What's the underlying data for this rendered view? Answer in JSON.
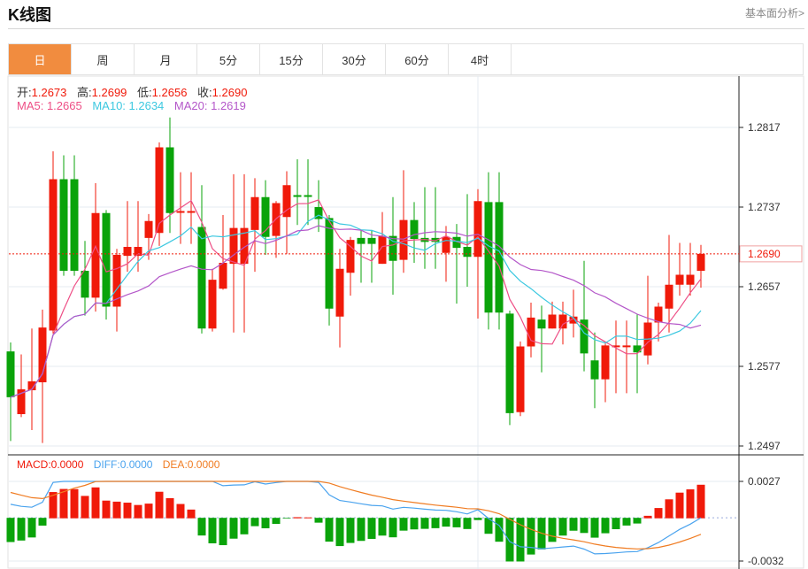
{
  "header": {
    "title": "K线图",
    "link": "基本面分析>"
  },
  "tabs": [
    {
      "label": "日",
      "active": true
    },
    {
      "label": "周"
    },
    {
      "label": "月"
    },
    {
      "label": "5分"
    },
    {
      "label": "15分"
    },
    {
      "label": "30分"
    },
    {
      "label": "60分"
    },
    {
      "label": "4时"
    }
  ],
  "legend": {
    "open_label": "开:",
    "open": "1.2673",
    "high_label": "高:",
    "high": "1.2699",
    "low_label": "低:",
    "low": "1.2656",
    "close_label": "收:",
    "close": "1.2690",
    "ma5": "MA5: 1.2665",
    "ma10": "MA10: 1.2634",
    "ma20": "MA20: 1.2619"
  },
  "macd_legend": {
    "macd": "MACD:0.0000",
    "diff": "DIFF:0.0000",
    "dea": "DEA:0.0000"
  },
  "colors": {
    "up": "#f01a0a",
    "down": "#0aa30a",
    "ma5": "#ee4f86",
    "ma10": "#3cc8e0",
    "ma20": "#b457c9",
    "diff": "#4aa3ee",
    "dea": "#f07c22",
    "accent": "#f18c3f"
  },
  "chart_data": {
    "type": "candlestick",
    "price_axis": {
      "ticks": [
        "1.2817",
        "1.2737",
        "1.2657",
        "1.2577",
        "1.2497"
      ],
      "range": [
        1.2497,
        1.2817
      ]
    },
    "macd_axis": {
      "ticks": [
        "0.0027",
        "-0.0032"
      ],
      "range": [
        -0.0032,
        0.0027
      ]
    },
    "current_price": "1.2690",
    "ohlc": [
      [
        1.2592,
        1.2601,
        1.2502,
        1.2546
      ],
      [
        1.2529,
        1.2589,
        1.2526,
        1.2554
      ],
      [
        1.2553,
        1.2615,
        1.2513,
        1.2562
      ],
      [
        1.2561,
        1.2634,
        1.25,
        1.2616
      ],
      [
        1.2613,
        1.2793,
        1.261,
        1.2765
      ],
      [
        1.2765,
        1.2789,
        1.2668,
        1.2673
      ],
      [
        1.2765,
        1.2789,
        1.2668,
        1.2673
      ],
      [
        1.2673,
        1.2703,
        1.2628,
        1.2646
      ],
      [
        1.2646,
        1.2761,
        1.2632,
        1.2731
      ],
      [
        1.2731,
        1.2734,
        1.2624,
        1.2637
      ],
      [
        1.2637,
        1.2695,
        1.2612,
        1.2689
      ],
      [
        1.2688,
        1.2743,
        1.2672,
        1.2697
      ],
      [
        1.2688,
        1.2743,
        1.2672,
        1.2697
      ],
      [
        1.2706,
        1.273,
        1.2684,
        1.2723
      ],
      [
        1.2711,
        1.2802,
        1.2698,
        1.2797
      ],
      [
        1.2797,
        1.2827,
        1.2711,
        1.2731
      ],
      [
        1.2732,
        1.2772,
        1.27,
        1.2733
      ],
      [
        1.2732,
        1.2772,
        1.27,
        1.2733
      ],
      [
        1.2717,
        1.2759,
        1.261,
        1.2615
      ],
      [
        1.2615,
        1.2675,
        1.2612,
        1.2664
      ],
      [
        1.2655,
        1.2729,
        1.2654,
        1.2681
      ],
      [
        1.268,
        1.277,
        1.2611,
        1.2716
      ],
      [
        1.268,
        1.277,
        1.2611,
        1.2716
      ],
      [
        1.2714,
        1.2766,
        1.2672,
        1.2747
      ],
      [
        1.2747,
        1.2764,
        1.2689,
        1.2707
      ],
      [
        1.2708,
        1.2743,
        1.2686,
        1.2741
      ],
      [
        1.2727,
        1.2773,
        1.269,
        1.2759
      ],
      [
        1.2749,
        1.2785,
        1.2719,
        1.2748
      ],
      [
        1.2749,
        1.2785,
        1.2719,
        1.2748
      ],
      [
        1.2737,
        1.2764,
        1.2712,
        1.2725
      ],
      [
        1.2726,
        1.2729,
        1.2618,
        1.2635
      ],
      [
        1.2627,
        1.2695,
        1.2596,
        1.2675
      ],
      [
        1.2671,
        1.2707,
        1.2648,
        1.2704
      ],
      [
        1.2706,
        1.2714,
        1.2661,
        1.27
      ],
      [
        1.2706,
        1.2714,
        1.2661,
        1.27
      ],
      [
        1.268,
        1.2732,
        1.268,
        1.2708
      ],
      [
        1.2708,
        1.2747,
        1.2649,
        1.2683
      ],
      [
        1.2684,
        1.2774,
        1.2671,
        1.2724
      ],
      [
        1.2724,
        1.2742,
        1.2681,
        1.2705
      ],
      [
        1.2706,
        1.2757,
        1.2675,
        1.2702
      ],
      [
        1.2706,
        1.2757,
        1.2675,
        1.2702
      ],
      [
        1.2691,
        1.2718,
        1.2662,
        1.2707
      ],
      [
        1.2707,
        1.272,
        1.264,
        1.2696
      ],
      [
        1.2697,
        1.275,
        1.2657,
        1.2687
      ],
      [
        1.2687,
        1.2755,
        1.2625,
        1.2743
      ],
      [
        1.2742,
        1.2772,
        1.2614,
        1.2631
      ],
      [
        1.2742,
        1.2772,
        1.2614,
        1.2631
      ],
      [
        1.263,
        1.2633,
        1.2518,
        1.253
      ],
      [
        1.2531,
        1.2602,
        1.2527,
        1.2597
      ],
      [
        1.2597,
        1.2641,
        1.2586,
        1.2626
      ],
      [
        1.2624,
        1.2638,
        1.2571,
        1.2615
      ],
      [
        1.2615,
        1.2642,
        1.2615,
        1.2629
      ],
      [
        1.2615,
        1.2642,
        1.2599,
        1.2629
      ],
      [
        1.262,
        1.2654,
        1.2606,
        1.2627
      ],
      [
        1.2624,
        1.2683,
        1.2572,
        1.259
      ],
      [
        1.2583,
        1.2611,
        1.2535,
        1.2564
      ],
      [
        1.2564,
        1.26,
        1.2541,
        1.2598
      ],
      [
        1.2598,
        1.2623,
        1.255,
        1.2598
      ],
      [
        1.2598,
        1.2623,
        1.255,
        1.2598
      ],
      [
        1.2598,
        1.2629,
        1.255,
        1.2591
      ],
      [
        1.2588,
        1.2668,
        1.2579,
        1.2621
      ],
      [
        1.2621,
        1.2641,
        1.2602,
        1.2637
      ],
      [
        1.2635,
        1.2709,
        1.2611,
        1.2659
      ],
      [
        1.2659,
        1.2701,
        1.2648,
        1.2669
      ],
      [
        1.2659,
        1.2701,
        1.2648,
        1.2669
      ],
      [
        1.2673,
        1.2699,
        1.2656,
        1.269
      ]
    ],
    "series": [
      "MA5",
      "MA10",
      "MA20",
      "DIFF",
      "DEA",
      "MACD"
    ]
  }
}
